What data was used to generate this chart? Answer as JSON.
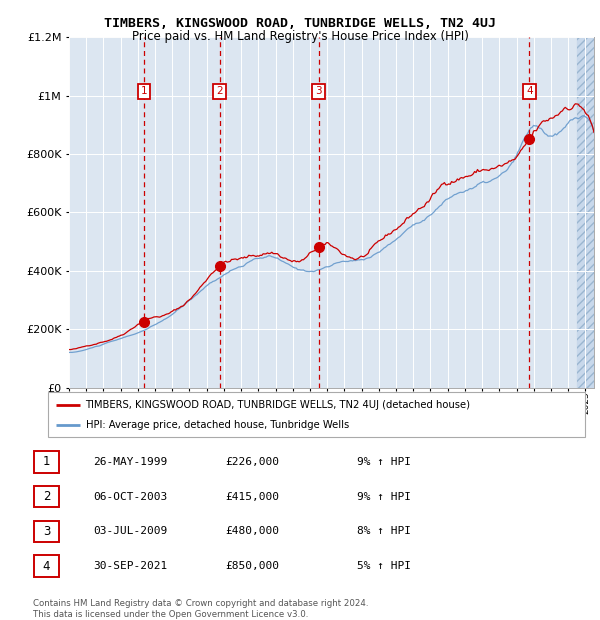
{
  "title": "TIMBERS, KINGSWOOD ROAD, TUNBRIDGE WELLS, TN2 4UJ",
  "subtitle": "Price paid vs. HM Land Registry's House Price Index (HPI)",
  "footer": "Contains HM Land Registry data © Crown copyright and database right 2024.\nThis data is licensed under the Open Government Licence v3.0.",
  "legend_red": "TIMBERS, KINGSWOOD ROAD, TUNBRIDGE WELLS, TN2 4UJ (detached house)",
  "legend_blue": "HPI: Average price, detached house, Tunbridge Wells",
  "transactions": [
    {
      "num": 1,
      "date": "26-MAY-1999",
      "price": 226000,
      "pct": "9%",
      "dir": "↑",
      "year": 1999.37
    },
    {
      "num": 2,
      "date": "06-OCT-2003",
      "price": 415000,
      "pct": "9%",
      "dir": "↑",
      "year": 2003.75
    },
    {
      "num": 3,
      "date": "03-JUL-2009",
      "price": 480000,
      "pct": "8%",
      "dir": "↑",
      "year": 2009.5
    },
    {
      "num": 4,
      "date": "30-SEP-2021",
      "price": 850000,
      "pct": "5%",
      "dir": "↑",
      "year": 2021.75
    }
  ],
  "ylim": [
    0,
    1200000
  ],
  "xlim_start": 1995.0,
  "xlim_end": 2025.5,
  "bg_color": "#dce6f1",
  "red_color": "#cc0000",
  "blue_color": "#6699cc",
  "grid_color": "#ffffff",
  "hatch_start": 2024.5
}
